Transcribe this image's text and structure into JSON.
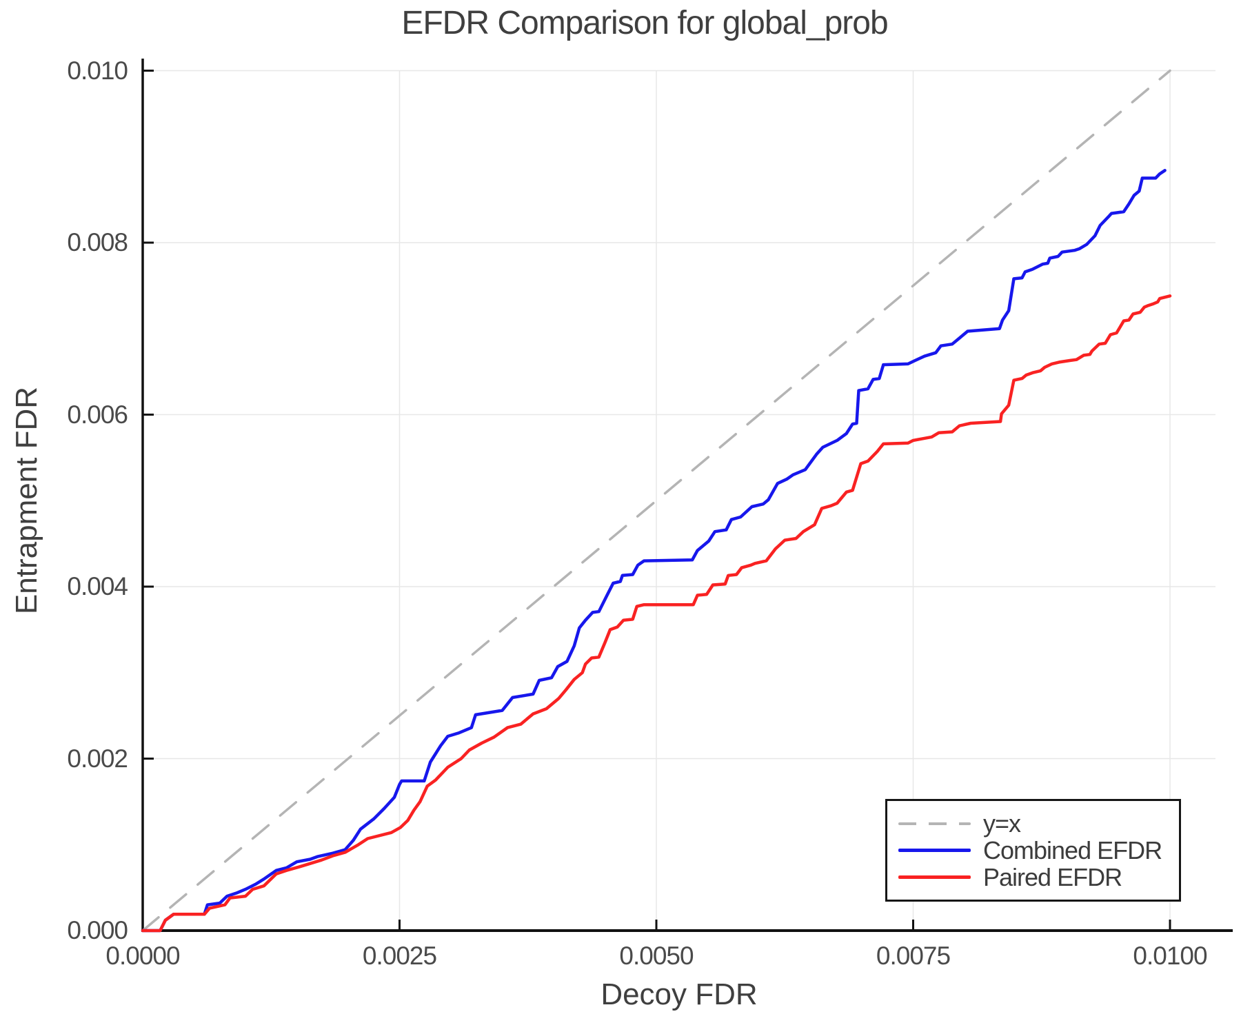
{
  "title": "EFDR Comparison for global_prob",
  "x_axis": {
    "label": "Decoy FDR",
    "ticks": [
      {
        "v": 0.0,
        "label": "0.0000"
      },
      {
        "v": 0.0025,
        "label": "0.0025"
      },
      {
        "v": 0.005,
        "label": "0.0050"
      },
      {
        "v": 0.0075,
        "label": "0.0075"
      },
      {
        "v": 0.01,
        "label": "0.0100"
      }
    ]
  },
  "y_axis": {
    "label": "Entrapment FDR",
    "ticks": [
      {
        "v": 0.0,
        "label": "0.000"
      },
      {
        "v": 0.002,
        "label": "0.002"
      },
      {
        "v": 0.004,
        "label": "0.004"
      },
      {
        "v": 0.006,
        "label": "0.006"
      },
      {
        "v": 0.008,
        "label": "0.008"
      },
      {
        "v": 0.01,
        "label": "0.010"
      }
    ]
  },
  "colors": {
    "identity": "#b4b4b4",
    "combined": "#1717ec",
    "paired": "#f92222",
    "grid": "#e7e7e7",
    "spine": "#111111",
    "text": "#3f3f3f"
  },
  "legend": {
    "items": [
      {
        "label": "y=x",
        "style": "dashed",
        "color": "#b4b4b4"
      },
      {
        "label": "Combined EFDR",
        "style": "solid",
        "color": "#1717ec"
      },
      {
        "label": "Paired EFDR",
        "style": "solid",
        "color": "#f92222"
      }
    ]
  },
  "chart_data": {
    "type": "line",
    "title": "EFDR Comparison for global_prob",
    "xlabel": "Decoy FDR",
    "ylabel": "Entrapment FDR",
    "xlim": [
      0.0,
      0.0105
    ],
    "ylim": [
      0.0,
      0.0101
    ],
    "grid": true,
    "legend_position": "bottom-right",
    "series": [
      {
        "name": "y=x",
        "style": "dashed",
        "color": "#b4b4b4",
        "points": [
          [
            0.0,
            0.0
          ],
          [
            0.01,
            0.01
          ]
        ]
      },
      {
        "name": "Combined EFDR",
        "style": "solid",
        "color": "#1717ec",
        "points": [
          [
            0,
            0
          ],
          [
            0.00017,
            0
          ],
          [
            0.00022,
            0.00012
          ],
          [
            0.0003,
            0.00019
          ],
          [
            0.0006,
            0.00019
          ],
          [
            0.00063,
            0.0003
          ],
          [
            0.00075,
            0.00032
          ],
          [
            0.00082,
            0.0004
          ],
          [
            0.00092,
            0.00044
          ],
          [
            0.001,
            0.00048
          ],
          [
            0.0011,
            0.00054
          ],
          [
            0.00118,
            0.0006
          ],
          [
            0.0013,
            0.0007
          ],
          [
            0.0014,
            0.00073
          ],
          [
            0.0015,
            0.0008
          ],
          [
            0.00163,
            0.00083
          ],
          [
            0.0017,
            0.00086
          ],
          [
            0.00185,
            0.0009
          ],
          [
            0.00197,
            0.00094
          ],
          [
            0.00205,
            0.00105
          ],
          [
            0.00212,
            0.00118
          ],
          [
            0.00225,
            0.0013
          ],
          [
            0.00235,
            0.00142
          ],
          [
            0.00245,
            0.00155
          ],
          [
            0.0025,
            0.0017
          ],
          [
            0.00252,
            0.00174
          ],
          [
            0.00274,
            0.00174
          ],
          [
            0.0028,
            0.00196
          ],
          [
            0.0029,
            0.00215
          ],
          [
            0.00297,
            0.00226
          ],
          [
            0.00308,
            0.0023
          ],
          [
            0.0032,
            0.00236
          ],
          [
            0.00324,
            0.00251
          ],
          [
            0.0035,
            0.00256
          ],
          [
            0.0036,
            0.00271
          ],
          [
            0.0038,
            0.00275
          ],
          [
            0.00386,
            0.00291
          ],
          [
            0.00398,
            0.00294
          ],
          [
            0.00404,
            0.00307
          ],
          [
            0.00413,
            0.00313
          ],
          [
            0.0042,
            0.00331
          ],
          [
            0.00425,
            0.00352
          ],
          [
            0.00431,
            0.00361
          ],
          [
            0.00438,
            0.0037
          ],
          [
            0.00444,
            0.00371
          ],
          [
            0.00452,
            0.0039
          ],
          [
            0.00458,
            0.00404
          ],
          [
            0.00465,
            0.00406
          ],
          [
            0.00467,
            0.00413
          ],
          [
            0.00477,
            0.00414
          ],
          [
            0.00482,
            0.00425
          ],
          [
            0.00488,
            0.0043
          ],
          [
            0.00535,
            0.00431
          ],
          [
            0.0054,
            0.00442
          ],
          [
            0.00551,
            0.00453
          ],
          [
            0.00557,
            0.00464
          ],
          [
            0.00568,
            0.00466
          ],
          [
            0.00573,
            0.00478
          ],
          [
            0.00582,
            0.00481
          ],
          [
            0.00593,
            0.00493
          ],
          [
            0.00604,
            0.00496
          ],
          [
            0.00609,
            0.00501
          ],
          [
            0.00618,
            0.0052
          ],
          [
            0.00627,
            0.00525
          ],
          [
            0.00633,
            0.0053
          ],
          [
            0.00645,
            0.00536
          ],
          [
            0.00656,
            0.00554
          ],
          [
            0.00662,
            0.00562
          ],
          [
            0.00676,
            0.0057
          ],
          [
            0.00685,
            0.00578
          ],
          [
            0.00691,
            0.00589
          ],
          [
            0.00695,
            0.0059
          ],
          [
            0.00697,
            0.00628
          ],
          [
            0.00706,
            0.0063
          ],
          [
            0.00711,
            0.00641
          ],
          [
            0.00717,
            0.00642
          ],
          [
            0.00721,
            0.00658
          ],
          [
            0.00745,
            0.00659
          ],
          [
            0.00752,
            0.00663
          ],
          [
            0.00761,
            0.00668
          ],
          [
            0.00772,
            0.00672
          ],
          [
            0.00777,
            0.0068
          ],
          [
            0.00788,
            0.00682
          ],
          [
            0.00795,
            0.00689
          ],
          [
            0.00803,
            0.00697
          ],
          [
            0.00834,
            0.007
          ],
          [
            0.00837,
            0.0071
          ],
          [
            0.00843,
            0.00721
          ],
          [
            0.00848,
            0.00758
          ],
          [
            0.00856,
            0.00759
          ],
          [
            0.00859,
            0.00766
          ],
          [
            0.00866,
            0.00769
          ],
          [
            0.00876,
            0.00775
          ],
          [
            0.00881,
            0.00776
          ],
          [
            0.00883,
            0.00782
          ],
          [
            0.00891,
            0.00784
          ],
          [
            0.00895,
            0.00789
          ],
          [
            0.00907,
            0.00791
          ],
          [
            0.00912,
            0.00793
          ],
          [
            0.00919,
            0.00798
          ],
          [
            0.00927,
            0.00808
          ],
          [
            0.00932,
            0.0082
          ],
          [
            0.0094,
            0.0083
          ],
          [
            0.00943,
            0.00834
          ],
          [
            0.00955,
            0.00836
          ],
          [
            0.0096,
            0.00845
          ],
          [
            0.00965,
            0.00855
          ],
          [
            0.0097,
            0.0086
          ],
          [
            0.00973,
            0.00875
          ],
          [
            0.00986,
            0.00875
          ],
          [
            0.0099,
            0.0088
          ],
          [
            0.00995,
            0.00884
          ]
        ]
      },
      {
        "name": "Paired EFDR",
        "style": "solid",
        "color": "#f92222",
        "points": [
          [
            0,
            0
          ],
          [
            0.00017,
            0
          ],
          [
            0.00022,
            0.00012
          ],
          [
            0.0003,
            0.00019
          ],
          [
            0.0006,
            0.00019
          ],
          [
            0.00065,
            0.00026
          ],
          [
            0.0008,
            0.0003
          ],
          [
            0.00085,
            0.00038
          ],
          [
            0.001,
            0.0004
          ],
          [
            0.00107,
            0.00048
          ],
          [
            0.00118,
            0.00052
          ],
          [
            0.0013,
            0.00066
          ],
          [
            0.0014,
            0.0007
          ],
          [
            0.00152,
            0.00074
          ],
          [
            0.00163,
            0.00078
          ],
          [
            0.00174,
            0.00082
          ],
          [
            0.00185,
            0.00087
          ],
          [
            0.00197,
            0.00091
          ],
          [
            0.0021,
            0.001
          ],
          [
            0.00219,
            0.00107
          ],
          [
            0.00242,
            0.00114
          ],
          [
            0.00251,
            0.0012
          ],
          [
            0.00258,
            0.00128
          ],
          [
            0.00264,
            0.0014
          ],
          [
            0.0027,
            0.0015
          ],
          [
            0.00277,
            0.00168
          ],
          [
            0.00285,
            0.00175
          ],
          [
            0.00297,
            0.0019
          ],
          [
            0.0031,
            0.002
          ],
          [
            0.00318,
            0.0021
          ],
          [
            0.0033,
            0.00218
          ],
          [
            0.00342,
            0.00225
          ],
          [
            0.00355,
            0.00236
          ],
          [
            0.00368,
            0.0024
          ],
          [
            0.0038,
            0.00252
          ],
          [
            0.00393,
            0.00258
          ],
          [
            0.00405,
            0.0027
          ],
          [
            0.00412,
            0.0028
          ],
          [
            0.0042,
            0.00292
          ],
          [
            0.00428,
            0.003
          ],
          [
            0.00431,
            0.0031
          ],
          [
            0.00437,
            0.00317
          ],
          [
            0.00444,
            0.00318
          ],
          [
            0.0045,
            0.00335
          ],
          [
            0.00455,
            0.0035
          ],
          [
            0.00462,
            0.00353
          ],
          [
            0.00468,
            0.00361
          ],
          [
            0.00477,
            0.00362
          ],
          [
            0.00481,
            0.00377
          ],
          [
            0.00488,
            0.00379
          ],
          [
            0.00536,
            0.00379
          ],
          [
            0.0054,
            0.0039
          ],
          [
            0.00549,
            0.00391
          ],
          [
            0.00555,
            0.00402
          ],
          [
            0.00567,
            0.00403
          ],
          [
            0.0057,
            0.00413
          ],
          [
            0.00578,
            0.00414
          ],
          [
            0.00583,
            0.00422
          ],
          [
            0.00592,
            0.00425
          ],
          [
            0.00596,
            0.00427
          ],
          [
            0.00607,
            0.0043
          ],
          [
            0.00616,
            0.00444
          ],
          [
            0.00625,
            0.00454
          ],
          [
            0.00636,
            0.00456
          ],
          [
            0.00643,
            0.00464
          ],
          [
            0.00654,
            0.00472
          ],
          [
            0.00661,
            0.00491
          ],
          [
            0.0067,
            0.00494
          ],
          [
            0.00676,
            0.00497
          ],
          [
            0.00685,
            0.0051
          ],
          [
            0.00691,
            0.00512
          ],
          [
            0.00699,
            0.00543
          ],
          [
            0.00706,
            0.00546
          ],
          [
            0.00715,
            0.00557
          ],
          [
            0.00721,
            0.00566
          ],
          [
            0.00745,
            0.00567
          ],
          [
            0.0075,
            0.0057
          ],
          [
            0.00759,
            0.00572
          ],
          [
            0.00768,
            0.00574
          ],
          [
            0.00775,
            0.00579
          ],
          [
            0.00788,
            0.0058
          ],
          [
            0.00795,
            0.00587
          ],
          [
            0.00806,
            0.0059
          ],
          [
            0.00835,
            0.00592
          ],
          [
            0.00836,
            0.00601
          ],
          [
            0.00843,
            0.00611
          ],
          [
            0.00848,
            0.0064
          ],
          [
            0.00856,
            0.00642
          ],
          [
            0.0086,
            0.00646
          ],
          [
            0.00867,
            0.00649
          ],
          [
            0.00874,
            0.00651
          ],
          [
            0.00878,
            0.00655
          ],
          [
            0.00885,
            0.00659
          ],
          [
            0.00892,
            0.00661
          ],
          [
            0.00903,
            0.00663
          ],
          [
            0.00909,
            0.00664
          ],
          [
            0.00916,
            0.00669
          ],
          [
            0.00922,
            0.0067
          ],
          [
            0.00924,
            0.00674
          ],
          [
            0.00931,
            0.00682
          ],
          [
            0.00937,
            0.00683
          ],
          [
            0.00942,
            0.00693
          ],
          [
            0.00948,
            0.00695
          ],
          [
            0.00951,
            0.00701
          ],
          [
            0.00955,
            0.00709
          ],
          [
            0.0096,
            0.0071
          ],
          [
            0.00964,
            0.00717
          ],
          [
            0.00971,
            0.00719
          ],
          [
            0.00975,
            0.00725
          ],
          [
            0.00979,
            0.00727
          ],
          [
            0.00984,
            0.00729
          ],
          [
            0.00988,
            0.00731
          ],
          [
            0.0099,
            0.00735
          ],
          [
            0.01,
            0.00738
          ]
        ]
      }
    ]
  }
}
